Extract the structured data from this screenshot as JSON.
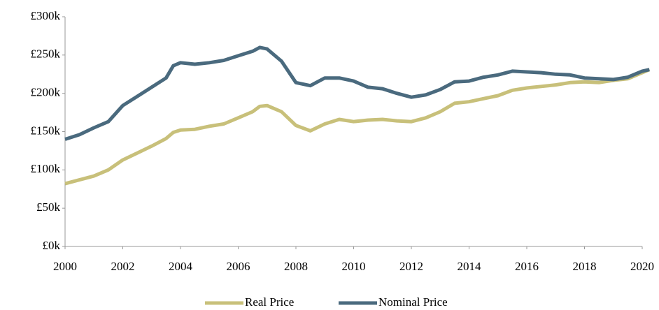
{
  "chart_data": {
    "type": "line",
    "x": [
      2000,
      2000.5,
      2001,
      2001.5,
      2002,
      2002.5,
      2003,
      2003.5,
      2003.75,
      2004,
      2004.5,
      2005,
      2005.5,
      2006,
      2006.5,
      2006.75,
      2007,
      2007.5,
      2008,
      2008.5,
      2009,
      2009.5,
      2010,
      2010.5,
      2011,
      2011.5,
      2012,
      2012.5,
      2013,
      2013.5,
      2014,
      2014.5,
      2015,
      2015.5,
      2016,
      2016.5,
      2017,
      2017.5,
      2018,
      2018.5,
      2019,
      2019.5,
      2020,
      2020.25
    ],
    "series": [
      {
        "name": "Real Price",
        "color": "#c8c07a",
        "values": [
          82,
          87,
          92,
          100,
          113,
          122,
          131,
          141,
          149,
          152,
          153,
          157,
          160,
          168,
          176,
          183,
          184,
          176,
          158,
          151,
          160,
          166,
          163,
          165,
          166,
          164,
          163,
          168,
          176,
          187,
          189,
          193,
          197,
          204,
          207,
          209,
          211,
          214,
          215,
          214,
          217,
          219,
          227,
          231
        ]
      },
      {
        "name": "Nominal Price",
        "color": "#4a6a7e",
        "values": [
          140,
          146,
          155,
          163,
          184,
          196,
          208,
          220,
          236,
          240,
          238,
          240,
          243,
          249,
          255,
          260,
          258,
          242,
          214,
          210,
          220,
          220,
          216,
          208,
          206,
          200,
          195,
          198,
          205,
          215,
          216,
          221,
          224,
          229,
          228,
          227,
          225,
          224,
          220,
          219,
          218,
          221,
          229,
          231
        ]
      }
    ],
    "xlim": [
      2000,
      2020.25
    ],
    "xticks": [
      2000,
      2002,
      2004,
      2006,
      2008,
      2010,
      2012,
      2014,
      2016,
      2018,
      2020
    ],
    "ylim": [
      0,
      300
    ],
    "yticks": [
      {
        "value": 0,
        "label": "£0k"
      },
      {
        "value": 50,
        "label": "£50k"
      },
      {
        "value": 100,
        "label": "£100k"
      },
      {
        "value": 150,
        "label": "£150k"
      },
      {
        "value": 200,
        "label": "£200k"
      },
      {
        "value": 250,
        "label": "£250k"
      },
      {
        "value": 300,
        "label": "£300k"
      }
    ],
    "grid": false,
    "legend": "bottom"
  }
}
